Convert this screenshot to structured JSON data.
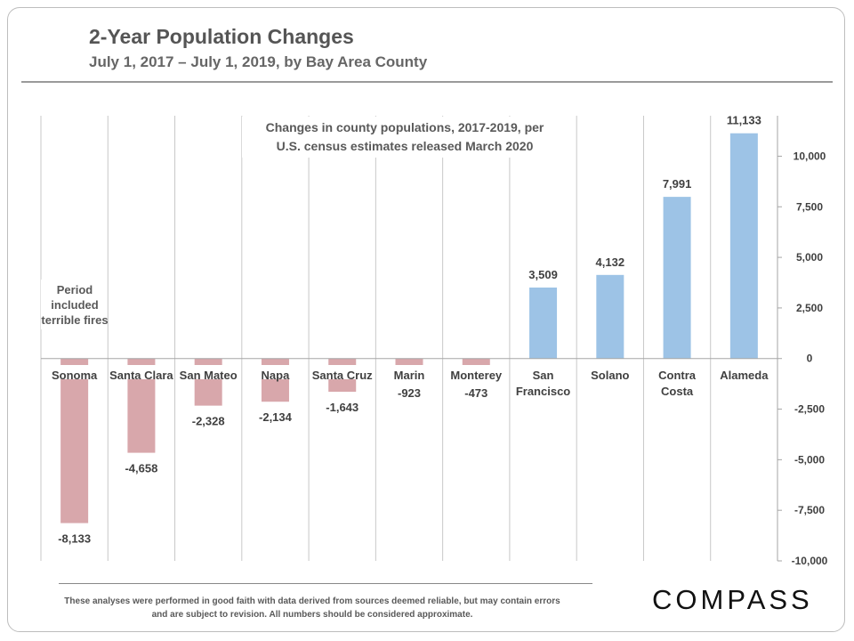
{
  "page": {
    "title": "2-Year Population Changes",
    "subtitle": "July 1, 2017 – July 1, 2019, by Bay Area County",
    "disclaimer": "These analyses were performed in good faith with data derived from sources deemed reliable, but may contain errors and are subject to revision. All numbers should be considered approximate.",
    "logo": "COMPASS"
  },
  "chart_data": {
    "type": "bar",
    "title": "",
    "annotation_title": [
      "Changes in county populations, 2017-2019, per",
      "U.S. census estimates released March 2020"
    ],
    "note": [
      "Period",
      "included",
      "terrible fires"
    ],
    "categories": [
      [
        "Sonoma"
      ],
      [
        "Santa Clara"
      ],
      [
        "San Mateo"
      ],
      [
        "Napa"
      ],
      [
        "Santa Cruz"
      ],
      [
        "Marin"
      ],
      [
        "Monterey"
      ],
      [
        "San",
        "Francisco"
      ],
      [
        "Solano"
      ],
      [
        "Contra",
        "Costa"
      ],
      [
        "Alameda"
      ]
    ],
    "values": [
      -8133,
      -4658,
      -2328,
      -2134,
      -1643,
      -923,
      -473,
      3509,
      4132,
      7991,
      11133
    ],
    "value_labels": [
      "-8,133",
      "-4,658",
      "-2,328",
      "-2,134",
      "-1,643",
      "-923",
      "-473",
      "3,509",
      "4,132",
      "7,991",
      "11,133"
    ],
    "ylim": [
      -10000,
      12000
    ],
    "yticks": [
      -10000,
      -7500,
      -5000,
      -2500,
      0,
      2500,
      5000,
      7500,
      10000
    ],
    "ytick_labels": [
      "-10,000",
      "-7,500",
      "-5,000",
      "-2,500",
      "0",
      "2,500",
      "5,000",
      "7,500",
      "10,000"
    ],
    "y_axis_side": "right",
    "grid": "vertical",
    "colors": {
      "negative": "#d8a7ab",
      "positive": "#9dc3e6",
      "grid": "#c8c8c8",
      "text": "#404040"
    }
  }
}
